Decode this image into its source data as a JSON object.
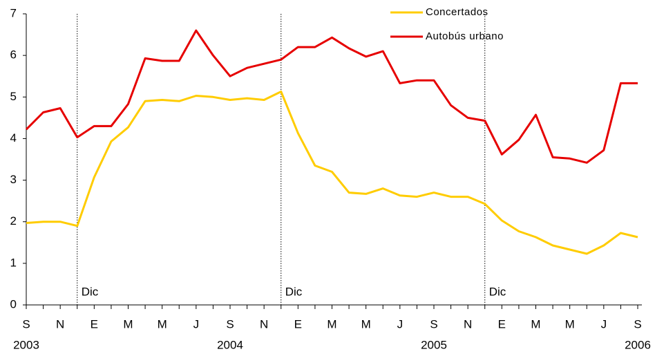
{
  "chart_data": {
    "type": "line",
    "categories": [
      "S",
      null,
      "N",
      null,
      "E",
      null,
      "M",
      null,
      "M",
      null,
      "J",
      null,
      "S",
      null,
      "N",
      null,
      "E",
      null,
      "M",
      null,
      "M",
      null,
      "J",
      null,
      "S",
      null,
      "N",
      null,
      "E",
      null,
      "M",
      null,
      "M",
      null,
      "J",
      null,
      "S"
    ],
    "category_years": [
      "2003",
      null,
      null,
      null,
      null,
      null,
      null,
      null,
      null,
      null,
      null,
      null,
      "2004",
      null,
      null,
      null,
      null,
      null,
      null,
      null,
      null,
      null,
      null,
      null,
      "2005",
      null,
      null,
      null,
      null,
      null,
      null,
      null,
      null,
      null,
      null,
      null,
      "2006"
    ],
    "series": [
      {
        "name": "Concertados",
        "color": "#ffcc00",
        "values": [
          1.97,
          2.0,
          2.0,
          1.9,
          3.07,
          3.93,
          4.27,
          4.9,
          4.93,
          4.9,
          5.03,
          5.0,
          4.93,
          4.97,
          4.93,
          5.13,
          4.13,
          3.35,
          3.2,
          2.7,
          2.67,
          2.8,
          2.63,
          2.6,
          2.7,
          2.6,
          2.6,
          2.43,
          2.03,
          1.77,
          1.63,
          1.43,
          1.33,
          1.23,
          1.43,
          1.73,
          1.63
        ]
      },
      {
        "name": "Autobús urbano",
        "color": "#e60000",
        "values": [
          4.22,
          4.63,
          4.73,
          4.03,
          4.3,
          4.3,
          4.83,
          5.93,
          5.87,
          5.87,
          6.6,
          6.0,
          5.5,
          5.7,
          5.8,
          5.9,
          6.2,
          6.2,
          6.43,
          6.17,
          5.97,
          6.1,
          5.33,
          5.4,
          5.4,
          4.8,
          4.5,
          4.43,
          3.62,
          3.97,
          4.57,
          3.55,
          3.52,
          3.42,
          3.72,
          5.33,
          5.33
        ]
      }
    ],
    "annotations": [
      {
        "text": "Dic",
        "x": 3
      },
      {
        "text": "Dic",
        "x": 15
      },
      {
        "text": "Dic",
        "x": 27
      }
    ],
    "ylim": [
      0,
      7
    ],
    "yticks": [
      0,
      1,
      2,
      3,
      4,
      5,
      6,
      7
    ],
    "grid": false,
    "legend": "top-right"
  }
}
